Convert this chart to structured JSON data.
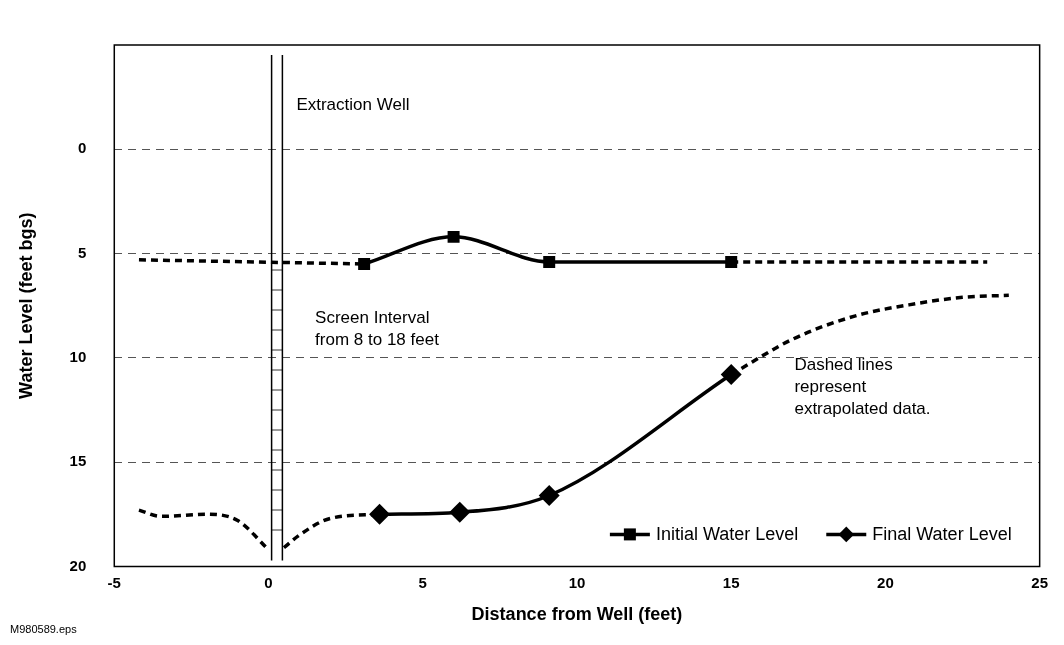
{
  "chart_data": {
    "type": "line",
    "xlabel": "Distance from Well (feet)",
    "ylabel": "Water Level (feet bgs)",
    "xlim": [
      -5,
      25
    ],
    "xticks": [
      -5,
      0,
      5,
      10,
      15,
      20,
      25
    ],
    "ylim": [
      20,
      -5
    ],
    "yticks": [
      0,
      5,
      10,
      15,
      20
    ],
    "grid": "y",
    "legend": "bottom right",
    "ref_lines": [
      {
        "axis": "x",
        "value": 0.1
      },
      {
        "axis": "x",
        "value": 0.45,
        "label": "Extraction Well"
      }
    ],
    "annotations": [
      "Screen Interval\nfrom 8 to 18 feet",
      "Dashed lines\nrepresent\nextrapolated data.",
      "M980589.eps"
    ],
    "series": [
      {
        "name": "Initial Water Level",
        "color": "#000000",
        "marker": "square",
        "line_style": "solid",
        "x": [
          3.1,
          6,
          9.1,
          15
        ],
        "values": [
          5.5,
          4.2,
          5.4,
          5.4
        ]
      },
      {
        "color": "#000000",
        "marker": "none",
        "line_style": "dashed",
        "x": [
          -4.2,
          3.1
        ],
        "values": [
          5.3,
          5.5
        ]
      },
      {
        "color": "#000000",
        "marker": "none",
        "line_style": "dashed",
        "x": [
          15,
          23.3
        ],
        "values": [
          5.4,
          5.4
        ]
      },
      {
        "name": "Final Water Level",
        "color": "#000000",
        "marker": "diamond",
        "line_style": "solid",
        "x": [
          3.6,
          6.2,
          9.1,
          15
        ],
        "values": [
          17.5,
          17.4,
          16.6,
          10.8
        ]
      },
      {
        "color": "#000000",
        "marker": "none",
        "line_style": "dashed",
        "x": [
          -4.2,
          -3.5,
          -2,
          -1,
          0
        ],
        "values": [
          17.3,
          17.6,
          17.5,
          17.8,
          19.2
        ]
      },
      {
        "color": "#000000",
        "marker": "none",
        "line_style": "dashed",
        "x": [
          0.5,
          1,
          2,
          3.6
        ],
        "values": [
          19.1,
          18.5,
          17.7,
          17.5
        ]
      },
      {
        "color": "#000000",
        "marker": "none",
        "line_style": "dashed",
        "x": [
          15,
          17,
          19,
          21,
          22.5,
          24
        ],
        "values": [
          10.8,
          9.1,
          8,
          7.4,
          7.1,
          7
        ]
      }
    ]
  }
}
